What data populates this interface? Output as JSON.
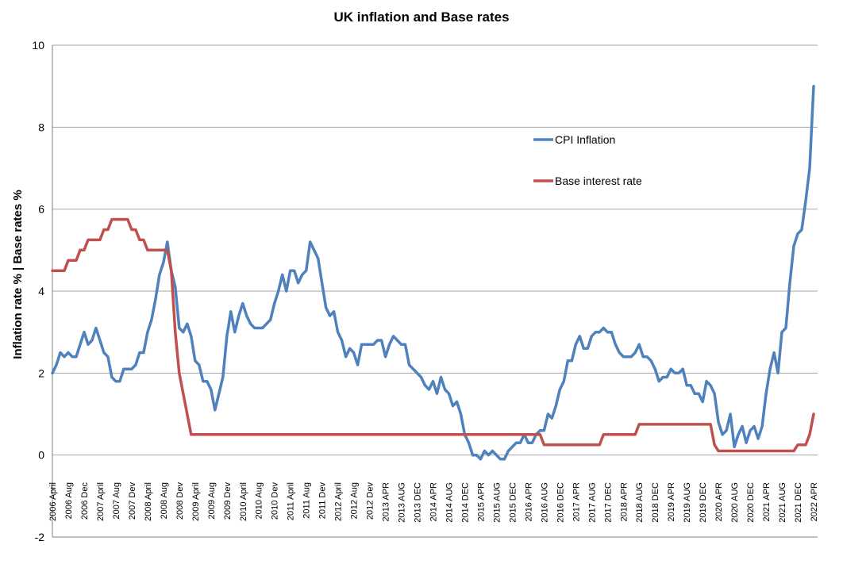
{
  "chart_data": {
    "type": "line",
    "title": "UK inflation and Base rates",
    "ylabel": "Inflation rate % | Base rates %",
    "xlabel": "",
    "ylim": [
      -2,
      10
    ],
    "yticks": [
      -2,
      0,
      2,
      4,
      6,
      8,
      10
    ],
    "grid": true,
    "legend_position": "upper-right-interior",
    "x_start": "2006-04",
    "x_end": "2022-05",
    "x_ticks": [
      {
        "label": "2006 April",
        "date": "2006-04"
      },
      {
        "label": "2006 Aug",
        "date": "2006-08"
      },
      {
        "label": "2006 Dec",
        "date": "2006-12"
      },
      {
        "label": "2007 April",
        "date": "2007-04"
      },
      {
        "label": "2007 Aug",
        "date": "2007-08"
      },
      {
        "label": "2007 Dev",
        "date": "2007-12"
      },
      {
        "label": "2008 April",
        "date": "2008-04"
      },
      {
        "label": "2008 Aug",
        "date": "2008-08"
      },
      {
        "label": "2008 Dev",
        "date": "2008-12"
      },
      {
        "label": "2009 April",
        "date": "2009-04"
      },
      {
        "label": "2009 Aug",
        "date": "2009-08"
      },
      {
        "label": "2009 Dev",
        "date": "2009-12"
      },
      {
        "label": "2010 April",
        "date": "2010-04"
      },
      {
        "label": "2010 Aug",
        "date": "2010-08"
      },
      {
        "label": "2010 Dev",
        "date": "2010-12"
      },
      {
        "label": "2011 April",
        "date": "2011-04"
      },
      {
        "label": "2011 Aug",
        "date": "2011-08"
      },
      {
        "label": "2011 Dev",
        "date": "2011-12"
      },
      {
        "label": "2012 April",
        "date": "2012-04"
      },
      {
        "label": "2012 Aug",
        "date": "2012-08"
      },
      {
        "label": "2012 Dev",
        "date": "2012-12"
      },
      {
        "label": "2013 APR",
        "date": "2013-04"
      },
      {
        "label": "2013 AUG",
        "date": "2013-08"
      },
      {
        "label": "2013 DEC",
        "date": "2013-12"
      },
      {
        "label": "2014 APR",
        "date": "2014-04"
      },
      {
        "label": "2014 AUG",
        "date": "2014-08"
      },
      {
        "label": "2014 DEC",
        "date": "2014-12"
      },
      {
        "label": "2015 APR",
        "date": "2015-04"
      },
      {
        "label": "2015 AUG",
        "date": "2015-08"
      },
      {
        "label": "2015 DEC",
        "date": "2015-12"
      },
      {
        "label": "2016 APR",
        "date": "2016-04"
      },
      {
        "label": "2016 AUG",
        "date": "2016-08"
      },
      {
        "label": "2016 DEC",
        "date": "2016-12"
      },
      {
        "label": "2017 APR",
        "date": "2017-04"
      },
      {
        "label": "2017 AUG",
        "date": "2017-08"
      },
      {
        "label": "2017 DEC",
        "date": "2017-12"
      },
      {
        "label": "2018 APR",
        "date": "2018-04"
      },
      {
        "label": "2018 AUG",
        "date": "2018-08"
      },
      {
        "label": "2018 DEC",
        "date": "2018-12"
      },
      {
        "label": "2019 APR",
        "date": "2019-04"
      },
      {
        "label": "2019 AUG",
        "date": "2019-08"
      },
      {
        "label": "2019 DEC",
        "date": "2019-12"
      },
      {
        "label": "2020 APR",
        "date": "2020-04"
      },
      {
        "label": "2020 AUG",
        "date": "2020-08"
      },
      {
        "label": "2020 DEC",
        "date": "2020-12"
      },
      {
        "label": "2021 APR",
        "date": "2021-04"
      },
      {
        "label": "2021 AUG",
        "date": "2021-08"
      },
      {
        "label": "2021 DEC",
        "date": "2021-12"
      },
      {
        "label": "2022 APR",
        "date": "2022-04"
      }
    ],
    "series": [
      {
        "name": "CPI Inflation",
        "color": "#4f81bd",
        "points": [
          [
            "2006-04",
            2.0
          ],
          [
            "2006-05",
            2.2
          ],
          [
            "2006-06",
            2.5
          ],
          [
            "2006-07",
            2.4
          ],
          [
            "2006-08",
            2.5
          ],
          [
            "2006-09",
            2.4
          ],
          [
            "2006-10",
            2.4
          ],
          [
            "2006-11",
            2.7
          ],
          [
            "2006-12",
            3.0
          ],
          [
            "2007-01",
            2.7
          ],
          [
            "2007-02",
            2.8
          ],
          [
            "2007-03",
            3.1
          ],
          [
            "2007-04",
            2.8
          ],
          [
            "2007-05",
            2.5
          ],
          [
            "2007-06",
            2.4
          ],
          [
            "2007-07",
            1.9
          ],
          [
            "2007-08",
            1.8
          ],
          [
            "2007-09",
            1.8
          ],
          [
            "2007-10",
            2.1
          ],
          [
            "2007-11",
            2.1
          ],
          [
            "2007-12",
            2.1
          ],
          [
            "2008-01",
            2.2
          ],
          [
            "2008-02",
            2.5
          ],
          [
            "2008-03",
            2.5
          ],
          [
            "2008-04",
            3.0
          ],
          [
            "2008-05",
            3.3
          ],
          [
            "2008-06",
            3.8
          ],
          [
            "2008-07",
            4.4
          ],
          [
            "2008-08",
            4.7
          ],
          [
            "2008-09",
            5.2
          ],
          [
            "2008-10",
            4.5
          ],
          [
            "2008-11",
            4.1
          ],
          [
            "2008-12",
            3.1
          ],
          [
            "2009-01",
            3.0
          ],
          [
            "2009-02",
            3.2
          ],
          [
            "2009-03",
            2.9
          ],
          [
            "2009-04",
            2.3
          ],
          [
            "2009-05",
            2.2
          ],
          [
            "2009-06",
            1.8
          ],
          [
            "2009-07",
            1.8
          ],
          [
            "2009-08",
            1.6
          ],
          [
            "2009-09",
            1.1
          ],
          [
            "2009-10",
            1.5
          ],
          [
            "2009-11",
            1.9
          ],
          [
            "2009-12",
            2.9
          ],
          [
            "2010-01",
            3.5
          ],
          [
            "2010-02",
            3.0
          ],
          [
            "2010-03",
            3.4
          ],
          [
            "2010-04",
            3.7
          ],
          [
            "2010-05",
            3.4
          ],
          [
            "2010-06",
            3.2
          ],
          [
            "2010-07",
            3.1
          ],
          [
            "2010-08",
            3.1
          ],
          [
            "2010-09",
            3.1
          ],
          [
            "2010-10",
            3.2
          ],
          [
            "2010-11",
            3.3
          ],
          [
            "2010-12",
            3.7
          ],
          [
            "2011-01",
            4.0
          ],
          [
            "2011-02",
            4.4
          ],
          [
            "2011-03",
            4.0
          ],
          [
            "2011-04",
            4.5
          ],
          [
            "2011-05",
            4.5
          ],
          [
            "2011-06",
            4.2
          ],
          [
            "2011-07",
            4.4
          ],
          [
            "2011-08",
            4.5
          ],
          [
            "2011-09",
            5.2
          ],
          [
            "2011-10",
            5.0
          ],
          [
            "2011-11",
            4.8
          ],
          [
            "2011-12",
            4.2
          ],
          [
            "2012-01",
            3.6
          ],
          [
            "2012-02",
            3.4
          ],
          [
            "2012-03",
            3.5
          ],
          [
            "2012-04",
            3.0
          ],
          [
            "2012-05",
            2.8
          ],
          [
            "2012-06",
            2.4
          ],
          [
            "2012-07",
            2.6
          ],
          [
            "2012-08",
            2.5
          ],
          [
            "2012-09",
            2.2
          ],
          [
            "2012-10",
            2.7
          ],
          [
            "2012-11",
            2.7
          ],
          [
            "2012-12",
            2.7
          ],
          [
            "2013-01",
            2.7
          ],
          [
            "2013-02",
            2.8
          ],
          [
            "2013-03",
            2.8
          ],
          [
            "2013-04",
            2.4
          ],
          [
            "2013-05",
            2.7
          ],
          [
            "2013-06",
            2.9
          ],
          [
            "2013-07",
            2.8
          ],
          [
            "2013-08",
            2.7
          ],
          [
            "2013-09",
            2.7
          ],
          [
            "2013-10",
            2.2
          ],
          [
            "2013-11",
            2.1
          ],
          [
            "2013-12",
            2.0
          ],
          [
            "2014-01",
            1.9
          ],
          [
            "2014-02",
            1.7
          ],
          [
            "2014-03",
            1.6
          ],
          [
            "2014-04",
            1.8
          ],
          [
            "2014-05",
            1.5
          ],
          [
            "2014-06",
            1.9
          ],
          [
            "2014-07",
            1.6
          ],
          [
            "2014-08",
            1.5
          ],
          [
            "2014-09",
            1.2
          ],
          [
            "2014-10",
            1.3
          ],
          [
            "2014-11",
            1.0
          ],
          [
            "2014-12",
            0.5
          ],
          [
            "2015-01",
            0.3
          ],
          [
            "2015-02",
            0.0
          ],
          [
            "2015-03",
            0.0
          ],
          [
            "2015-04",
            -0.1
          ],
          [
            "2015-05",
            0.1
          ],
          [
            "2015-06",
            0.0
          ],
          [
            "2015-07",
            0.1
          ],
          [
            "2015-08",
            0.0
          ],
          [
            "2015-09",
            -0.1
          ],
          [
            "2015-10",
            -0.1
          ],
          [
            "2015-11",
            0.1
          ],
          [
            "2015-12",
            0.2
          ],
          [
            "2016-01",
            0.3
          ],
          [
            "2016-02",
            0.3
          ],
          [
            "2016-03",
            0.5
          ],
          [
            "2016-04",
            0.3
          ],
          [
            "2016-05",
            0.3
          ],
          [
            "2016-06",
            0.5
          ],
          [
            "2016-07",
            0.6
          ],
          [
            "2016-08",
            0.6
          ],
          [
            "2016-09",
            1.0
          ],
          [
            "2016-10",
            0.9
          ],
          [
            "2016-11",
            1.2
          ],
          [
            "2016-12",
            1.6
          ],
          [
            "2017-01",
            1.8
          ],
          [
            "2017-02",
            2.3
          ],
          [
            "2017-03",
            2.3
          ],
          [
            "2017-04",
            2.7
          ],
          [
            "2017-05",
            2.9
          ],
          [
            "2017-06",
            2.6
          ],
          [
            "2017-07",
            2.6
          ],
          [
            "2017-08",
            2.9
          ],
          [
            "2017-09",
            3.0
          ],
          [
            "2017-10",
            3.0
          ],
          [
            "2017-11",
            3.1
          ],
          [
            "2017-12",
            3.0
          ],
          [
            "2018-01",
            3.0
          ],
          [
            "2018-02",
            2.7
          ],
          [
            "2018-03",
            2.5
          ],
          [
            "2018-04",
            2.4
          ],
          [
            "2018-05",
            2.4
          ],
          [
            "2018-06",
            2.4
          ],
          [
            "2018-07",
            2.5
          ],
          [
            "2018-08",
            2.7
          ],
          [
            "2018-09",
            2.4
          ],
          [
            "2018-10",
            2.4
          ],
          [
            "2018-11",
            2.3
          ],
          [
            "2018-12",
            2.1
          ],
          [
            "2019-01",
            1.8
          ],
          [
            "2019-02",
            1.9
          ],
          [
            "2019-03",
            1.9
          ],
          [
            "2019-04",
            2.1
          ],
          [
            "2019-05",
            2.0
          ],
          [
            "2019-06",
            2.0
          ],
          [
            "2019-07",
            2.1
          ],
          [
            "2019-08",
            1.7
          ],
          [
            "2019-09",
            1.7
          ],
          [
            "2019-10",
            1.5
          ],
          [
            "2019-11",
            1.5
          ],
          [
            "2019-12",
            1.3
          ],
          [
            "2020-01",
            1.8
          ],
          [
            "2020-02",
            1.7
          ],
          [
            "2020-03",
            1.5
          ],
          [
            "2020-04",
            0.8
          ],
          [
            "2020-05",
            0.5
          ],
          [
            "2020-06",
            0.6
          ],
          [
            "2020-07",
            1.0
          ],
          [
            "2020-08",
            0.2
          ],
          [
            "2020-09",
            0.5
          ],
          [
            "2020-10",
            0.7
          ],
          [
            "2020-11",
            0.3
          ],
          [
            "2020-12",
            0.6
          ],
          [
            "2021-01",
            0.7
          ],
          [
            "2021-02",
            0.4
          ],
          [
            "2021-03",
            0.7
          ],
          [
            "2021-04",
            1.5
          ],
          [
            "2021-05",
            2.1
          ],
          [
            "2021-06",
            2.5
          ],
          [
            "2021-07",
            2.0
          ],
          [
            "2021-08",
            3.0
          ],
          [
            "2021-09",
            3.1
          ],
          [
            "2021-10",
            4.2
          ],
          [
            "2021-11",
            5.1
          ],
          [
            "2021-12",
            5.4
          ],
          [
            "2022-01",
            5.5
          ],
          [
            "2022-02",
            6.2
          ],
          [
            "2022-03",
            7.0
          ],
          [
            "2022-04",
            9.0
          ]
        ]
      },
      {
        "name": "Base interest rate",
        "color": "#c0504d",
        "points": [
          [
            "2006-04",
            4.5
          ],
          [
            "2006-07",
            4.5
          ],
          [
            "2006-08",
            4.75
          ],
          [
            "2006-10",
            4.75
          ],
          [
            "2006-11",
            5.0
          ],
          [
            "2006-12",
            5.0
          ],
          [
            "2007-01",
            5.25
          ],
          [
            "2007-04",
            5.25
          ],
          [
            "2007-05",
            5.5
          ],
          [
            "2007-06",
            5.5
          ],
          [
            "2007-07",
            5.75
          ],
          [
            "2007-11",
            5.75
          ],
          [
            "2007-12",
            5.5
          ],
          [
            "2008-01",
            5.5
          ],
          [
            "2008-02",
            5.25
          ],
          [
            "2008-03",
            5.25
          ],
          [
            "2008-04",
            5.0
          ],
          [
            "2008-09",
            5.0
          ],
          [
            "2008-10",
            4.5
          ],
          [
            "2008-11",
            3.0
          ],
          [
            "2008-12",
            2.0
          ],
          [
            "2009-01",
            1.5
          ],
          [
            "2009-02",
            1.0
          ],
          [
            "2009-03",
            0.5
          ],
          [
            "2016-07",
            0.5
          ],
          [
            "2016-08",
            0.25
          ],
          [
            "2017-10",
            0.25
          ],
          [
            "2017-11",
            0.5
          ],
          [
            "2018-07",
            0.5
          ],
          [
            "2018-08",
            0.75
          ],
          [
            "2020-02",
            0.75
          ],
          [
            "2020-03",
            0.25
          ],
          [
            "2020-04",
            0.1
          ],
          [
            "2021-11",
            0.1
          ],
          [
            "2021-12",
            0.25
          ],
          [
            "2022-02",
            0.25
          ],
          [
            "2022-03",
            0.5
          ],
          [
            "2022-04",
            1.0
          ]
        ]
      }
    ]
  }
}
